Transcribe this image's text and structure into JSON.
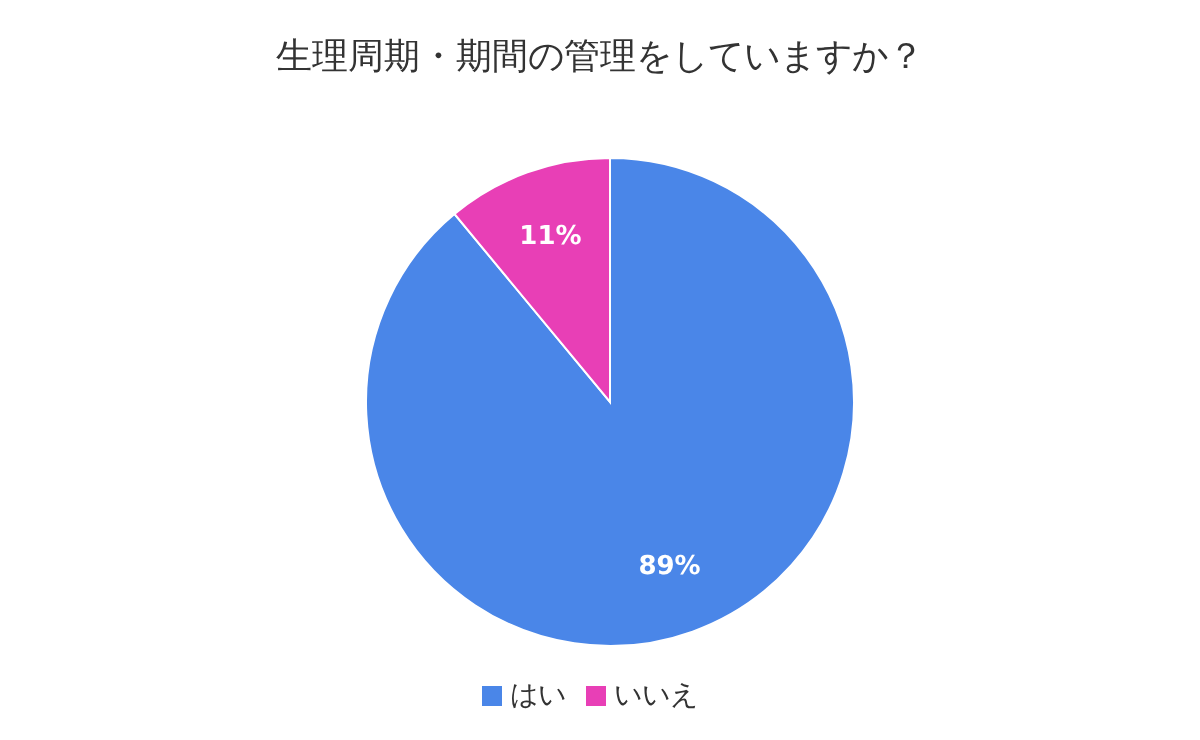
{
  "chart_data": {
    "type": "pie",
    "title": "生理周期・期間の管理をしていますか？",
    "categories": [
      "はい",
      "いいえ"
    ],
    "values": [
      89,
      11
    ],
    "colors": [
      "#4a86e8",
      "#e83fb6"
    ],
    "value_labels": [
      "89%",
      "11%"
    ],
    "legend": "bottom"
  }
}
